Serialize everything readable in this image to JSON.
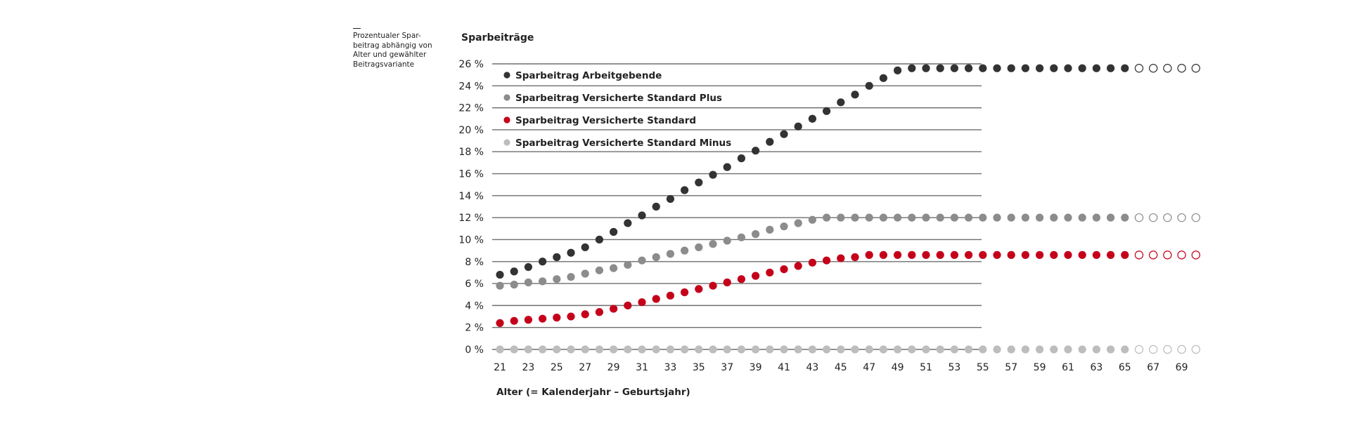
{
  "side_note": {
    "lines": [
      "Prozentualer Spar-",
      "beitrag abhängig von",
      "Alter und gewählter",
      "Beitragsvariante"
    ]
  },
  "chart_data": {
    "type": "scatter",
    "title": "Sparbeiträge",
    "xlabel": "Alter (= Kalenderjahr – Geburtsjahr)",
    "ylabel": "",
    "xlim": [
      21,
      70
    ],
    "ylim": [
      0,
      26
    ],
    "grid": true,
    "legend_position": "top-left",
    "x_ticks": [
      "21",
      "23",
      "25",
      "27",
      "29",
      "31",
      "33",
      "35",
      "37",
      "39",
      "41",
      "43",
      "45",
      "47",
      "49",
      "51",
      "53",
      "55",
      "57",
      "59",
      "61",
      "63",
      "65",
      "67",
      "69"
    ],
    "y_ticks": [
      "0 %",
      "2 %",
      "4 %",
      "6 %",
      "8 %",
      "10 %",
      "12 %",
      "14 %",
      "16 %",
      "18 %",
      "20 %",
      "22 %",
      "24 %",
      "26 %"
    ],
    "x": [
      21,
      22,
      23,
      24,
      25,
      26,
      27,
      28,
      29,
      30,
      31,
      32,
      33,
      34,
      35,
      36,
      37,
      38,
      39,
      40,
      41,
      42,
      43,
      44,
      45,
      46,
      47,
      48,
      49,
      50,
      51,
      52,
      53,
      54,
      55,
      56,
      57,
      58,
      59,
      60,
      61,
      62,
      63,
      64,
      65,
      66,
      67,
      68,
      69,
      70
    ],
    "filled_until_age": 65,
    "series": [
      {
        "name": "Sparbeitrag Arbeitgebende",
        "color": "#333333",
        "values": [
          6.8,
          7.1,
          7.5,
          8.0,
          8.4,
          8.8,
          9.3,
          10.0,
          10.7,
          11.5,
          12.2,
          13.0,
          13.7,
          14.5,
          15.2,
          15.9,
          16.6,
          17.4,
          18.1,
          18.9,
          19.6,
          20.3,
          21.0,
          21.7,
          22.5,
          23.2,
          24.0,
          24.7,
          25.4,
          25.6,
          25.6,
          25.6,
          25.6,
          25.6,
          25.6,
          25.6,
          25.6,
          25.6,
          25.6,
          25.6,
          25.6,
          25.6,
          25.6,
          25.6,
          25.6,
          25.6,
          25.6,
          25.6,
          25.6,
          25.6
        ]
      },
      {
        "name": "Sparbeitrag Versicherte Standard Plus",
        "color": "#8c8c8c",
        "values": [
          5.8,
          5.9,
          6.1,
          6.2,
          6.4,
          6.6,
          6.9,
          7.2,
          7.4,
          7.7,
          8.1,
          8.4,
          8.7,
          9.0,
          9.3,
          9.6,
          9.9,
          10.2,
          10.5,
          10.9,
          11.2,
          11.5,
          11.8,
          12.0,
          12.0,
          12.0,
          12.0,
          12.0,
          12.0,
          12.0,
          12.0,
          12.0,
          12.0,
          12.0,
          12.0,
          12.0,
          12.0,
          12.0,
          12.0,
          12.0,
          12.0,
          12.0,
          12.0,
          12.0,
          12.0,
          12.0,
          12.0,
          12.0,
          12.0,
          12.0
        ]
      },
      {
        "name": "Sparbeitrag Versicherte Standard",
        "color": "#c4001a",
        "values": [
          2.4,
          2.6,
          2.7,
          2.8,
          2.9,
          3.0,
          3.2,
          3.4,
          3.7,
          4.0,
          4.3,
          4.6,
          4.9,
          5.2,
          5.5,
          5.8,
          6.1,
          6.4,
          6.7,
          7.0,
          7.3,
          7.6,
          7.9,
          8.1,
          8.3,
          8.4,
          8.6,
          8.6,
          8.6,
          8.6,
          8.6,
          8.6,
          8.6,
          8.6,
          8.6,
          8.6,
          8.6,
          8.6,
          8.6,
          8.6,
          8.6,
          8.6,
          8.6,
          8.6,
          8.6,
          8.6,
          8.6,
          8.6,
          8.6,
          8.6
        ]
      },
      {
        "name": "Sparbeitrag Versicherte Standard Minus",
        "color": "#bdbdbd",
        "values": [
          0,
          0,
          0,
          0,
          0,
          0,
          0,
          0,
          0,
          0,
          0,
          0,
          0,
          0,
          0,
          0,
          0,
          0,
          0,
          0,
          0,
          0,
          0,
          0,
          0,
          0,
          0,
          0,
          0,
          0,
          0,
          0,
          0,
          0,
          0,
          0,
          0,
          0,
          0,
          0,
          0,
          0,
          0,
          0,
          0,
          0,
          0,
          0,
          0,
          0
        ]
      }
    ]
  }
}
